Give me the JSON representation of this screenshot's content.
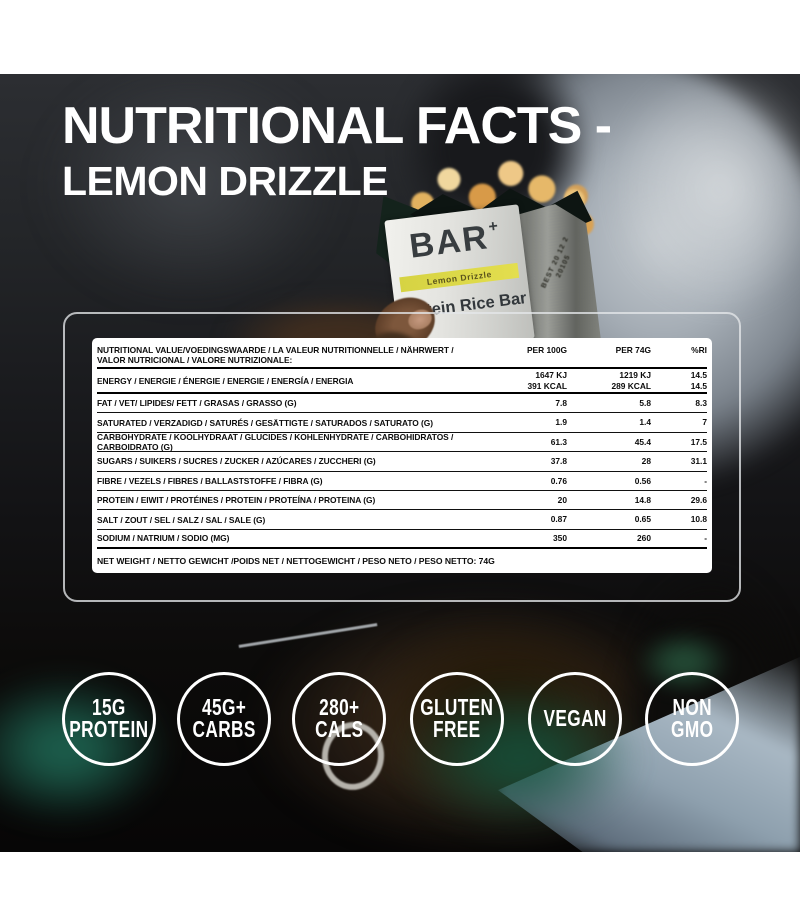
{
  "title": {
    "line1": "NUTRITIONAL FACTS -",
    "line2": "LEMON DRIZZLE",
    "color": "#ffffff"
  },
  "package": {
    "brand": "BAR",
    "brand_plus": "+",
    "flavor_label": "Lemon Drizzle",
    "product_name": "Protein Rice Bar",
    "stamp": "BEST 20 12 2 20105",
    "band_color": "#ddd83f"
  },
  "nutrition_table": {
    "header": {
      "label": "NUTRITIONAL VALUE/VOEDINGSWAARDE / LA VALEUR NUTRITIONNELLE / NÄHRWERT / VALOR NUTRICIONAL / VALORE NUTRIZIONALE:",
      "col_per_100g": "PER 100G",
      "col_per_74g": "PER 74G",
      "col_ri": "%RI"
    },
    "rows": [
      {
        "label": "ENERGY / ENERGIE / ÉNERGIE / ENERGIE / ENERGÍA / ENERGIA",
        "per_100g": [
          "1647 KJ",
          "391 KCAL"
        ],
        "per_74g": [
          "1219 KJ",
          "289 KCAL"
        ],
        "ri": [
          "14.5",
          "14.5"
        ]
      },
      {
        "label": "FAT / VET/ LIPIDES/ FETT / GRASAS / GRASSO (G)",
        "per_100g": [
          "7.8"
        ],
        "per_74g": [
          "5.8"
        ],
        "ri": [
          "8.3"
        ]
      },
      {
        "label": "SATURATED / VERZADIGD / SATURÉS / GESÄTTIGTE / SATURADOS / SATURATO (G)",
        "per_100g": [
          "1.9"
        ],
        "per_74g": [
          "1.4"
        ],
        "ri": [
          "7"
        ]
      },
      {
        "label": "CARBOHYDRATE / KOOLHYDRAAT / GLUCIDES / KOHLENHYDRATE / CARBOHIDRATOS / CARBOIDRATO (G)",
        "per_100g": [
          "61.3"
        ],
        "per_74g": [
          "45.4"
        ],
        "ri": [
          "17.5"
        ]
      },
      {
        "label": "SUGARS / SUIKERS / SUCRES / ZUCKER / AZÚCARES / ZUCCHERI (G)",
        "per_100g": [
          "37.8"
        ],
        "per_74g": [
          "28"
        ],
        "ri": [
          "31.1"
        ]
      },
      {
        "label": "FIBRE / VEZELS / FIBRES / BALLASTSTOFFE / FIBRA (G)",
        "per_100g": [
          "0.76"
        ],
        "per_74g": [
          "0.56"
        ],
        "ri": [
          "-"
        ]
      },
      {
        "label": "PROTEIN / EIWIT / PROTÉINES / PROTEIN / PROTEÍNA / PROTEINA (G)",
        "per_100g": [
          "20"
        ],
        "per_74g": [
          "14.8"
        ],
        "ri": [
          "29.6"
        ]
      },
      {
        "label": "SALT / ZOUT / SEL / SALZ / SAL / SALE (G)",
        "per_100g": [
          "0.87"
        ],
        "per_74g": [
          "0.65"
        ],
        "ri": [
          "10.8"
        ]
      },
      {
        "label": "SODIUM / NATRIUM / SODIO (MG)",
        "per_100g": [
          "350"
        ],
        "per_74g": [
          "260"
        ],
        "ri": [
          "-"
        ]
      }
    ],
    "net_weight": "NET WEIGHT / NETTO GEWICHT /POIDS NET / NETTOGEWICHT / PESO NETO / PESO NETTO: 74G"
  },
  "badges": [
    {
      "lines": [
        "15G",
        "PROTEIN"
      ]
    },
    {
      "lines": [
        "45G+",
        "CARBS"
      ]
    },
    {
      "lines": [
        "280+",
        "CALS"
      ]
    },
    {
      "lines": [
        "GLUTEN",
        "FREE"
      ]
    },
    {
      "lines": [
        "VEGAN"
      ]
    },
    {
      "lines": [
        "NON",
        "GMO"
      ]
    }
  ]
}
